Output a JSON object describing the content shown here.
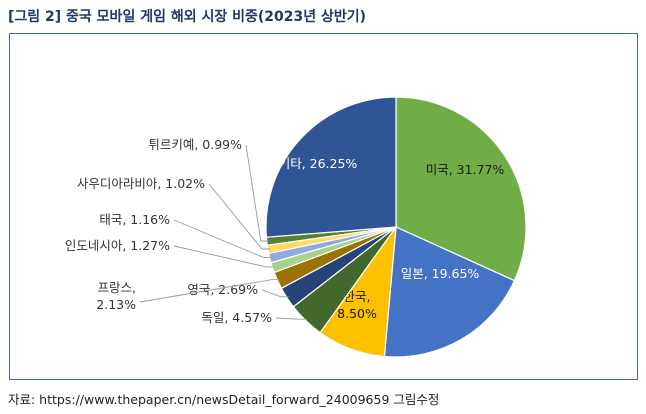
{
  "title": "[그림 2] 중국 모바일 게임 해외 시장 비중(2023년 상반기)",
  "source": "자료: https://www.thepaper.cn/newsDetail_forward_24009659 그림수정",
  "chart_data": {
    "type": "pie",
    "slices": [
      {
        "name": "미국",
        "value": 31.77,
        "label": "미국, 31.77%",
        "color": "#70ad47"
      },
      {
        "name": "일본",
        "value": 19.65,
        "label": "일본, 19.65%",
        "color": "#4472c4"
      },
      {
        "name": "한국",
        "value": 8.5,
        "label": "한국,\n8.50%",
        "color": "#ffc000"
      },
      {
        "name": "독일",
        "value": 4.57,
        "label": "독일, 4.57%",
        "color": "#43682b"
      },
      {
        "name": "영국",
        "value": 2.69,
        "label": "영국, 2.69%",
        "color": "#264478"
      },
      {
        "name": "프랑스",
        "value": 2.13,
        "label": "프랑스,\n2.13%",
        "color": "#997300"
      },
      {
        "name": "인도네시아",
        "value": 1.27,
        "label": "인도네시아, 1.27%",
        "color": "#a9d18e"
      },
      {
        "name": "태국",
        "value": 1.16,
        "label": "태국, 1.16%",
        "color": "#8faadc"
      },
      {
        "name": "사우디아라비아",
        "value": 1.02,
        "label": "사우디아라비아, 1.02%",
        "color": "#ffd966"
      },
      {
        "name": "튀르키예",
        "value": 0.99,
        "label": "튀르키예, 0.99%",
        "color": "#548235"
      },
      {
        "name": "기타",
        "value": 26.25,
        "label": "기타, 26.25%",
        "color": "#2f5597"
      }
    ]
  }
}
